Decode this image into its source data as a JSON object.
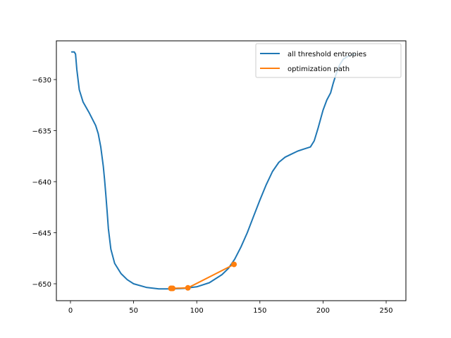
{
  "chart_data": {
    "type": "line",
    "title": "",
    "xlabel": "",
    "ylabel": "",
    "xlim": [
      -10,
      265
    ],
    "ylim": [
      -651.7,
      -626.3
    ],
    "grid": false,
    "legend_position": "upper right",
    "x_ticks": [
      0,
      50,
      100,
      150,
      200,
      250
    ],
    "x_tick_labels": [
      "0",
      "50",
      "100",
      "150",
      "200",
      "250"
    ],
    "y_ticks": [
      -630,
      -635,
      -640,
      -645,
      -650
    ],
    "y_tick_labels": [
      "−630",
      "−635",
      "−640",
      "−645",
      "−650"
    ],
    "series": [
      {
        "name": "all threshold entropies",
        "color": "#1f77b4",
        "marker": "none",
        "x": [
          1,
          3,
          4,
          5,
          7,
          10,
          15,
          20,
          22,
          24,
          26,
          27,
          28,
          29,
          30,
          32,
          35,
          40,
          45,
          50,
          60,
          70,
          80,
          90,
          100,
          110,
          120,
          125,
          130,
          135,
          140,
          145,
          150,
          155,
          160,
          165,
          170,
          175,
          180,
          185,
          190,
          193,
          196,
          198,
          200,
          203,
          206,
          208,
          210,
          213,
          216,
          220,
          225
        ],
        "y": [
          -627.3,
          -627.3,
          -627.5,
          -629.0,
          -631.0,
          -632.2,
          -633.3,
          -634.5,
          -635.3,
          -636.6,
          -638.5,
          -639.8,
          -641.3,
          -642.9,
          -644.6,
          -646.6,
          -648.0,
          -649.0,
          -649.6,
          -650.0,
          -650.35,
          -650.5,
          -650.5,
          -650.45,
          -650.3,
          -649.9,
          -649.1,
          -648.5,
          -647.6,
          -646.4,
          -645.0,
          -643.4,
          -641.8,
          -640.3,
          -639.0,
          -638.1,
          -637.6,
          -637.3,
          -637.0,
          -636.8,
          -636.6,
          -636.0,
          -634.8,
          -633.9,
          -633.0,
          -632.0,
          -631.3,
          -630.4,
          -629.6,
          -628.6,
          -628.0,
          -627.7,
          -627.5
        ]
      },
      {
        "name": "optimization path",
        "color": "#ff7f0e",
        "marker": "o",
        "x": [
          129.5,
          93,
          81,
          79.5,
          80
        ],
        "y": [
          -648.1,
          -650.4,
          -650.45,
          -650.45,
          -650.45
        ]
      }
    ],
    "legend": [
      "all threshold entropies",
      "optimization path"
    ]
  }
}
